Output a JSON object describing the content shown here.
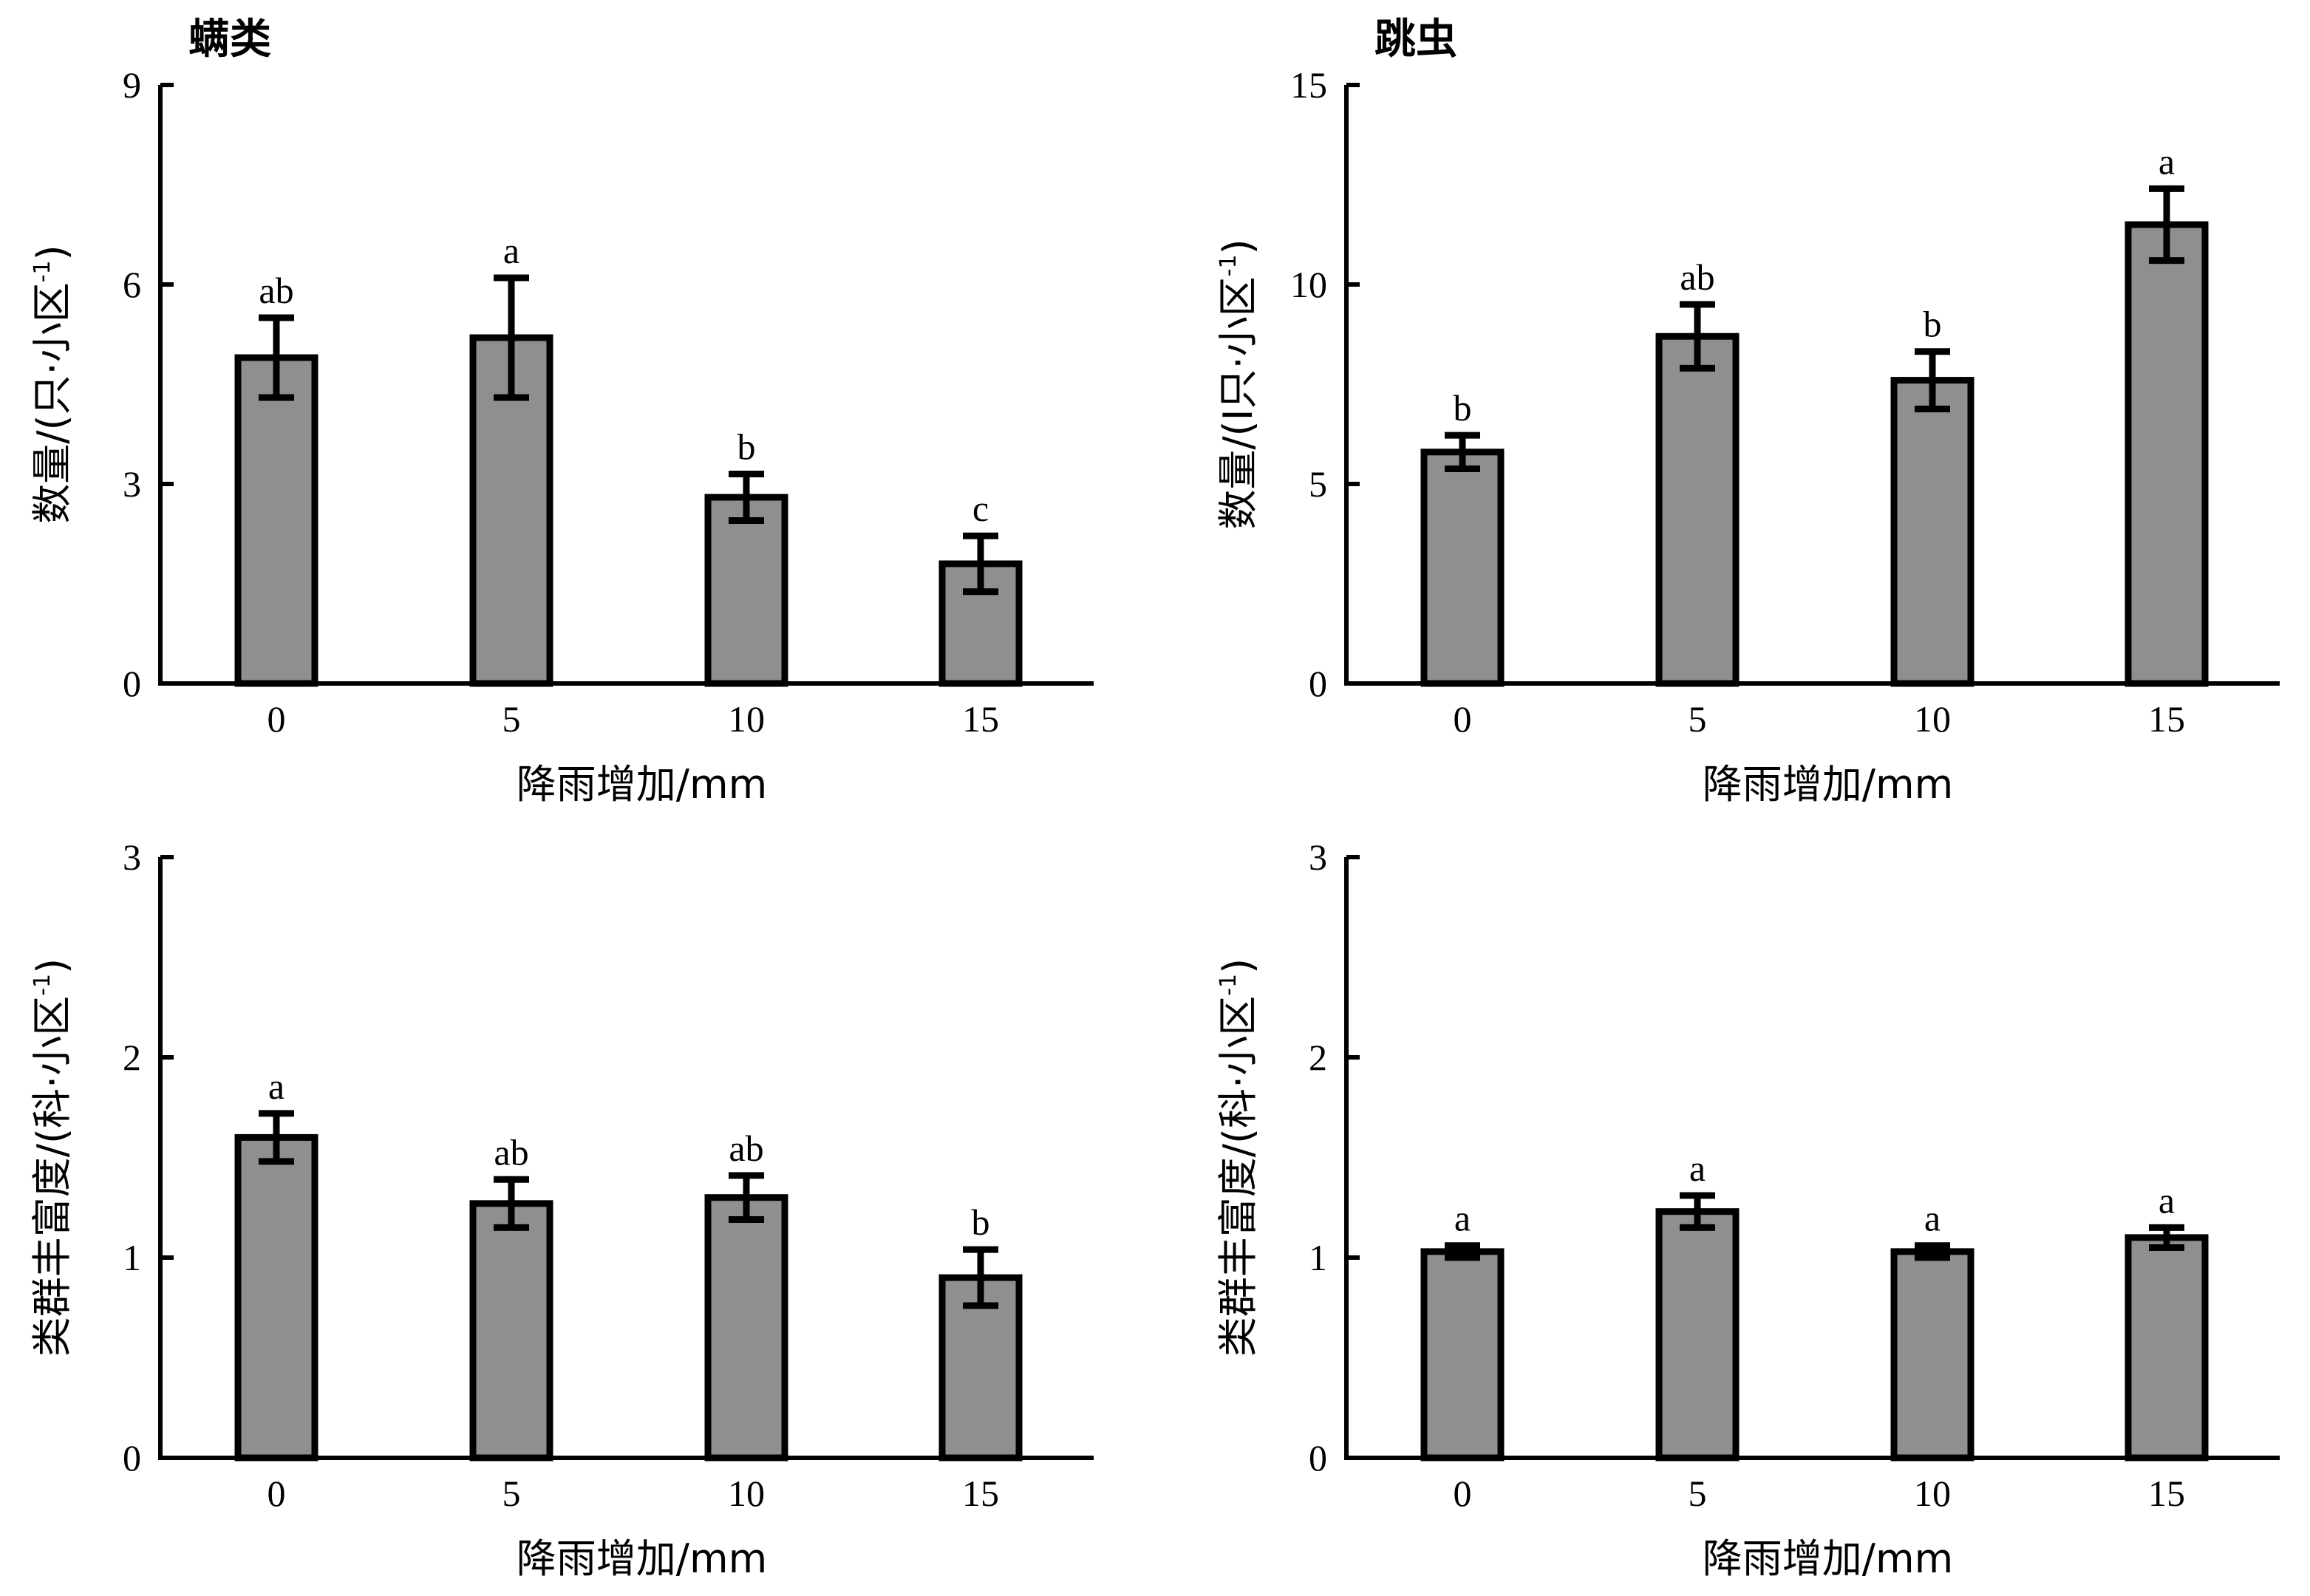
{
  "chart_data": [
    {
      "type": "bar",
      "title": "螨类",
      "xlabel": "降雨增加/mm",
      "ylabel": "数量/(只·小区",
      "ylabel_sup": "-1",
      "ylabel_close": ")",
      "categories": [
        "0",
        "5",
        "10",
        "15"
      ],
      "values": [
        4.9,
        5.2,
        2.8,
        1.8
      ],
      "errors": [
        0.6,
        0.9,
        0.35,
        0.42
      ],
      "letters": [
        "ab",
        "a",
        "b",
        "c"
      ],
      "ylim": [
        0,
        9
      ],
      "yticks": [
        "0",
        "3",
        "6",
        "9"
      ],
      "bar_color": "#8f8f8f"
    },
    {
      "type": "bar",
      "title": "跳虫",
      "xlabel": "降雨增加/mm",
      "ylabel": "数量/(I只·小区",
      "ylabel_sup": "-1",
      "ylabel_close": ")",
      "categories": [
        "0",
        "5",
        "10",
        "15"
      ],
      "values": [
        5.8,
        8.7,
        7.6,
        11.5
      ],
      "errors": [
        0.42,
        0.8,
        0.72,
        0.9
      ],
      "letters": [
        "b",
        "ab",
        "b",
        "a"
      ],
      "ylim": [
        0,
        15
      ],
      "yticks": [
        "0",
        "5",
        "10",
        "15"
      ],
      "bar_color": "#8f8f8f"
    },
    {
      "type": "bar",
      "title": "",
      "xlabel": "降雨增加/mm",
      "ylabel": "类群丰富度/(科·小区",
      "ylabel_sup": "-1",
      "ylabel_close": ")",
      "categories": [
        "0",
        "5",
        "10",
        "15"
      ],
      "values": [
        1.6,
        1.27,
        1.3,
        0.9
      ],
      "errors": [
        0.12,
        0.12,
        0.11,
        0.14
      ],
      "letters": [
        "a",
        "ab",
        "ab",
        "b"
      ],
      "ylim": [
        0,
        3
      ],
      "yticks": [
        "0",
        "1",
        "2",
        "3"
      ],
      "bar_color": "#8f8f8f"
    },
    {
      "type": "bar",
      "title": "",
      "xlabel": "降雨增加/mm",
      "ylabel": "类群丰富度/(科·小区",
      "ylabel_sup": "-1",
      "ylabel_close": ")",
      "categories": [
        "0",
        "5",
        "10",
        "15"
      ],
      "values": [
        1.03,
        1.23,
        1.03,
        1.1
      ],
      "errors": [
        0.03,
        0.08,
        0.03,
        0.05
      ],
      "letters": [
        "a",
        "a",
        "a",
        "a"
      ],
      "ylim": [
        0,
        3
      ],
      "yticks": [
        "0",
        "1",
        "2",
        "3"
      ],
      "bar_color": "#8f8f8f"
    }
  ]
}
